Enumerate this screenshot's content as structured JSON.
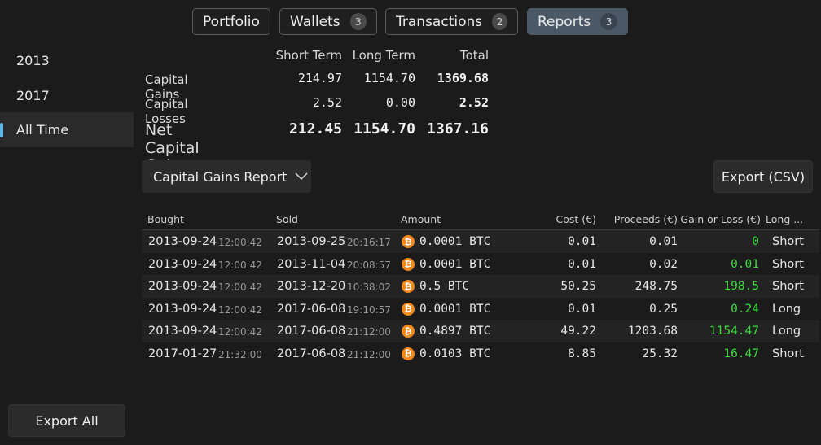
{
  "tabs": [
    {
      "label": "Portfolio",
      "badge": null
    },
    {
      "label": "Wallets",
      "badge": "3"
    },
    {
      "label": "Transactions",
      "badge": "2"
    },
    {
      "label": "Reports",
      "badge": "3",
      "active": true
    }
  ],
  "sidebar": {
    "items": [
      {
        "label": "2013"
      },
      {
        "label": "2017"
      },
      {
        "label": "All Time",
        "active": true
      }
    ],
    "export_all": "Export All"
  },
  "summary": {
    "headers": {
      "short": "Short Term",
      "long": "Long Term",
      "total": "Total"
    },
    "rows": [
      {
        "label": "Capital Gains",
        "short": "214.97",
        "long": "1154.70",
        "total": "1369.68"
      },
      {
        "label": "Capital Losses",
        "short": "2.52",
        "long": "0.00",
        "total": "2.52"
      },
      {
        "label": "Net Capital Gains",
        "short": "212.45",
        "long": "1154.70",
        "total": "1367.16"
      }
    ]
  },
  "report_select": {
    "value": "Capital Gains Report",
    "icon": "chevron-down-icon"
  },
  "export_csv": "Export (CSV)",
  "table": {
    "columns": [
      "Bought",
      "Sold",
      "Amount",
      "Cost (€)",
      "Proceeds (€)",
      "Gain or Loss (€)",
      "Long ..."
    ],
    "coin_symbol": "₿",
    "rows": [
      {
        "bought_date": "2013-09-24",
        "bought_time": "12:00:42",
        "sold_date": "2013-09-25",
        "sold_time": "20:16:17",
        "amount": "0.0001 BTC",
        "cost": "0.01",
        "proceeds": "0.01",
        "gain": "0",
        "term": "Short"
      },
      {
        "bought_date": "2013-09-24",
        "bought_time": "12:00:42",
        "sold_date": "2013-11-04",
        "sold_time": "20:08:57",
        "amount": "0.0001 BTC",
        "cost": "0.01",
        "proceeds": "0.02",
        "gain": "0.01",
        "term": "Short"
      },
      {
        "bought_date": "2013-09-24",
        "bought_time": "12:00:42",
        "sold_date": "2013-12-20",
        "sold_time": "10:38:02",
        "amount": "0.5 BTC",
        "cost": "50.25",
        "proceeds": "248.75",
        "gain": "198.5",
        "term": "Short"
      },
      {
        "bought_date": "2013-09-24",
        "bought_time": "12:00:42",
        "sold_date": "2017-06-08",
        "sold_time": "19:10:57",
        "amount": "0.0001 BTC",
        "cost": "0.01",
        "proceeds": "0.25",
        "gain": "0.24",
        "term": "Long"
      },
      {
        "bought_date": "2013-09-24",
        "bought_time": "12:00:42",
        "sold_date": "2017-06-08",
        "sold_time": "21:12:00",
        "amount": "0.4897 BTC",
        "cost": "49.22",
        "proceeds": "1203.68",
        "gain": "1154.47",
        "term": "Long"
      },
      {
        "bought_date": "2017-01-27",
        "bought_time": "21:32:00",
        "sold_date": "2017-06-08",
        "sold_time": "21:12:00",
        "amount": "0.0103 BTC",
        "cost": "8.85",
        "proceeds": "25.32",
        "gain": "16.47",
        "term": "Short"
      }
    ]
  },
  "colors": {
    "accent": "#5fb5e6",
    "gain": "#3ddc3d",
    "bitcoin": "#f08a1c",
    "active_tab": "#4b5866"
  }
}
